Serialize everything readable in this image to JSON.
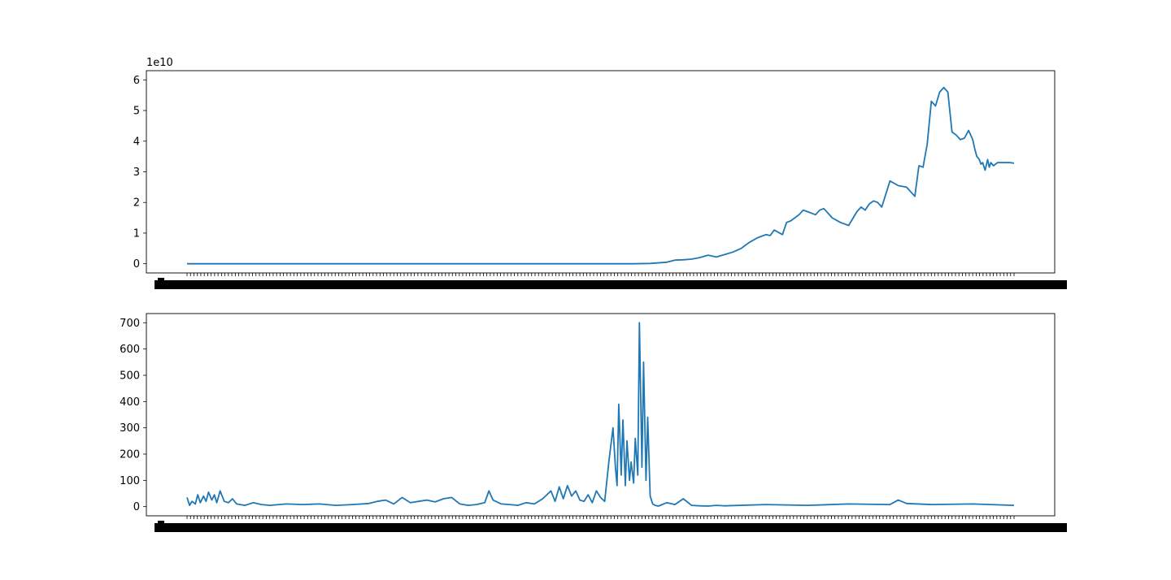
{
  "colors": {
    "line": "#1f77b4",
    "axes": "#000000",
    "background": "#ffffff"
  },
  "chart_data": [
    {
      "type": "line",
      "title": "",
      "xlabel": "",
      "ylabel": "",
      "offset_text": "1e10",
      "y_scale_factor": 10000000000,
      "xlim": [
        0,
        1000
      ],
      "ylim": [
        -0.3,
        6.3
      ],
      "yticks": [
        0,
        1,
        2,
        3,
        4,
        5,
        6
      ],
      "ytick_labels": [
        "0",
        "1",
        "2",
        "3",
        "4",
        "5",
        "6"
      ],
      "xticks": "dense-overlapping-date-labels",
      "grid": false,
      "legend": "none",
      "series": [
        {
          "x": [
            0,
            100,
            200,
            300,
            400,
            500,
            540,
            560,
            580,
            590,
            600,
            610,
            620,
            630,
            640,
            650,
            660,
            670,
            675,
            680,
            690,
            700,
            705,
            710,
            720,
            725,
            730,
            740,
            745,
            750,
            760,
            765,
            770,
            775,
            780,
            790,
            800,
            810,
            815,
            820,
            825,
            830,
            835,
            840,
            850,
            860,
            870,
            880,
            885,
            890,
            895,
            900,
            905,
            910,
            915,
            920,
            925,
            930,
            935,
            940,
            945,
            950,
            952,
            955,
            958,
            960,
            962,
            965,
            968,
            970,
            972,
            975,
            980,
            985,
            990,
            995,
            1000
          ],
          "values": [
            0,
            0,
            0,
            0,
            0,
            0,
            0,
            0.01,
            0.05,
            0.12,
            0.13,
            0.15,
            0.2,
            0.28,
            0.22,
            0.3,
            0.38,
            0.5,
            0.6,
            0.7,
            0.85,
            0.95,
            0.92,
            1.1,
            0.95,
            1.35,
            1.4,
            1.6,
            1.75,
            1.7,
            1.6,
            1.75,
            1.8,
            1.65,
            1.5,
            1.35,
            1.25,
            1.7,
            1.85,
            1.75,
            1.95,
            2.05,
            2.0,
            1.85,
            2.7,
            2.55,
            2.5,
            2.2,
            3.2,
            3.15,
            3.9,
            5.3,
            5.15,
            5.6,
            5.75,
            5.6,
            4.3,
            4.2,
            4.05,
            4.1,
            4.35,
            4.05,
            3.8,
            3.5,
            3.4,
            3.25,
            3.3,
            3.05,
            3.4,
            3.15,
            3.3,
            3.2,
            3.3,
            3.3,
            3.3,
            3.3,
            3.28
          ]
        }
      ]
    },
    {
      "type": "line",
      "title": "",
      "xlabel": "",
      "ylabel": "",
      "xlim": [
        0,
        1000
      ],
      "ylim": [
        -35,
        735
      ],
      "yticks": [
        0,
        100,
        200,
        300,
        400,
        500,
        600,
        700
      ],
      "ytick_labels": [
        "0",
        "100",
        "200",
        "300",
        "400",
        "500",
        "600",
        "700"
      ],
      "xticks": "dense-overlapping-date-labels",
      "grid": false,
      "legend": "none",
      "series": [
        {
          "x": [
            0,
            3,
            6,
            10,
            13,
            16,
            20,
            23,
            26,
            30,
            33,
            36,
            40,
            45,
            50,
            55,
            60,
            70,
            80,
            90,
            100,
            120,
            140,
            160,
            180,
            200,
            220,
            230,
            240,
            250,
            260,
            270,
            280,
            290,
            300,
            310,
            320,
            330,
            340,
            350,
            360,
            365,
            370,
            380,
            390,
            400,
            410,
            420,
            430,
            440,
            445,
            450,
            455,
            460,
            465,
            470,
            475,
            480,
            485,
            490,
            495,
            500,
            505,
            510,
            515,
            518,
            520,
            522,
            525,
            527,
            530,
            532,
            535,
            537,
            540,
            542,
            545,
            547,
            550,
            552,
            555,
            557,
            560,
            563,
            566,
            570,
            580,
            590,
            600,
            610,
            620,
            630,
            640,
            650,
            700,
            750,
            800,
            850,
            860,
            870,
            900,
            950,
            1000
          ],
          "values": [
            35,
            5,
            20,
            10,
            45,
            15,
            40,
            20,
            55,
            25,
            45,
            15,
            60,
            20,
            15,
            30,
            10,
            5,
            15,
            8,
            5,
            10,
            8,
            10,
            5,
            8,
            12,
            20,
            25,
            10,
            35,
            15,
            20,
            25,
            18,
            30,
            35,
            10,
            5,
            8,
            15,
            60,
            25,
            10,
            8,
            5,
            15,
            10,
            30,
            60,
            20,
            75,
            30,
            80,
            40,
            60,
            25,
            20,
            45,
            15,
            60,
            35,
            20,
            170,
            300,
            150,
            80,
            390,
            120,
            330,
            80,
            250,
            100,
            170,
            90,
            260,
            120,
            700,
            150,
            550,
            100,
            340,
            40,
            10,
            5,
            2,
            15,
            8,
            30,
            5,
            3,
            2,
            5,
            3,
            8,
            5,
            10,
            8,
            25,
            12,
            8,
            10,
            5
          ]
        }
      ]
    }
  ]
}
